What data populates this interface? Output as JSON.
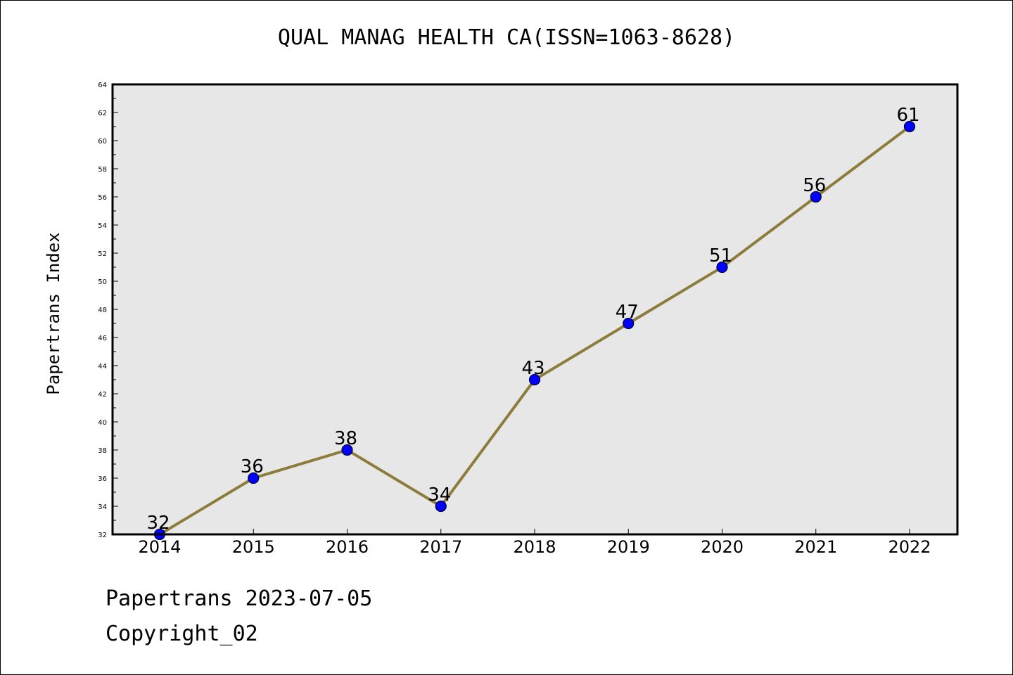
{
  "title": "QUAL MANAG HEALTH CA(ISSN=1063-8628)",
  "footer": {
    "date_line": "Papertrans 2023-07-05",
    "copyright": "Copyright_02"
  },
  "colors": {
    "plot_background": "#e7e7e7",
    "line": "#8c7d3c",
    "marker_fill": "#0000ff",
    "marker_stroke": "#000033"
  },
  "chart_data": {
    "type": "line",
    "title": "QUAL MANAG HEALTH CA(ISSN=1063-8628)",
    "xlabel": "",
    "ylabel": "Papertrans Index",
    "categories": [
      "2014",
      "2015",
      "2016",
      "2017",
      "2018",
      "2019",
      "2020",
      "2021",
      "2022"
    ],
    "series": [
      {
        "values": [
          32,
          36,
          38,
          34,
          43,
          47,
          51,
          56,
          61
        ],
        "data_labels": [
          "32",
          "36",
          "38",
          "34",
          "43",
          "47",
          "51",
          "56",
          "61"
        ]
      }
    ],
    "ylim": [
      32,
      64
    ],
    "yticks": [
      "32",
      "34",
      "36",
      "38",
      "40",
      "42",
      "44",
      "46",
      "48",
      "50",
      "52",
      "54",
      "56",
      "58",
      "60",
      "62",
      "64"
    ],
    "grid": false,
    "legend": "none"
  }
}
